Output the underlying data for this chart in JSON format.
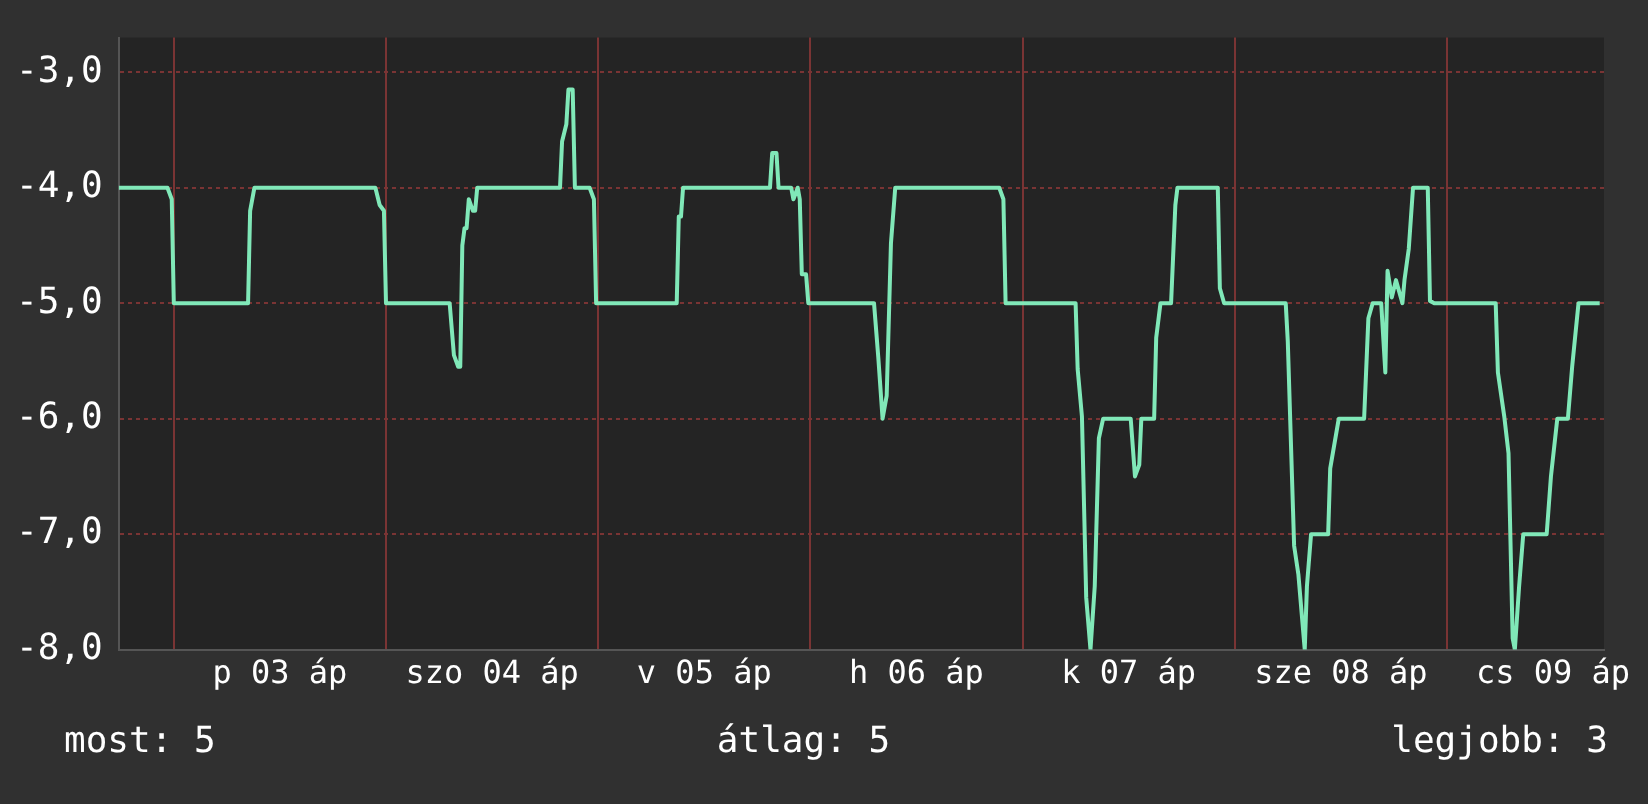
{
  "chart_data": {
    "type": "line",
    "xlim": [
      "--04-02T17:46",
      "--04-09T17:46"
    ],
    "ylim": [
      -8,
      -2.7
    ],
    "xticks": [
      {
        "value": "--04-03T00:00",
        "label": null
      },
      {
        "value": "--04-03T12:00",
        "label": "p 03 áp"
      },
      {
        "value": "--04-04T00:00",
        "label": null
      },
      {
        "value": "--04-04T12:00",
        "label": "szo 04 áp"
      },
      {
        "value": "--04-05T00:00",
        "label": null
      },
      {
        "value": "--04-05T12:00",
        "label": "v 05 áp"
      },
      {
        "value": "--04-06T00:00",
        "label": null
      },
      {
        "value": "--04-06T12:00",
        "label": "h 06 áp"
      },
      {
        "value": "--04-07T00:00",
        "label": null
      },
      {
        "value": "--04-07T12:00",
        "label": "k 07 áp"
      },
      {
        "value": "--04-08T00:00",
        "label": null
      },
      {
        "value": "--04-08T12:00",
        "label": "sze 08 áp"
      },
      {
        "value": "--04-09T00:00",
        "label": null
      },
      {
        "value": "--04-09T12:00",
        "label": "cs 09 áp"
      }
    ],
    "yticks": [
      {
        "value": -3,
        "label": "-3,0"
      },
      {
        "value": -4,
        "label": "-4,0"
      },
      {
        "value": -5,
        "label": "-5,0"
      },
      {
        "value": -6,
        "label": "-6,0"
      },
      {
        "value": -7,
        "label": "-7,0"
      },
      {
        "value": -8,
        "label": "-8,0"
      }
    ],
    "grid": true,
    "legend": false,
    "marker": "none",
    "line_style": "solid",
    "annotations": [
      "most: 5",
      "átlag: 5",
      "legjobb: 3"
    ],
    "series": [
      {
        "color": "#80e8b8",
        "x": [
          "--04-02T17:46",
          "--04-02T23:17",
          "--04-02T23:46",
          "--04-03T00:00",
          "--04-03T08:24",
          "--04-03T08:38",
          "--04-03T09:07",
          "--04-03T22:48",
          "--04-03T23:17",
          "--04-03T23:46",
          "--04-04T00:00",
          "--04-04T07:12",
          "--04-04T07:41",
          "--04-04T08:10",
          "--04-04T08:24",
          "--04-04T08:38",
          "--04-04T08:53",
          "--04-04T09:07",
          "--04-04T09:22",
          "--04-04T09:50",
          "--04-04T10:05",
          "--04-04T10:19",
          "--04-04T19:41",
          "--04-04T19:55",
          "--04-04T20:24",
          "--04-04T20:38",
          "--04-04T21:07",
          "--04-04T21:22",
          "--04-04T23:02",
          "--04-04T23:31",
          "--04-04T23:46",
          "--04-05T08:53",
          "--04-05T09:07",
          "--04-05T09:22",
          "--04-05T09:36",
          "--04-05T19:26",
          "--04-05T19:41",
          "--04-05T20:10",
          "--04-05T20:24",
          "--04-05T21:50",
          "--04-05T22:05",
          "--04-05T22:34",
          "--04-05T22:48",
          "--04-05T23:02",
          "--04-05T23:31",
          "--04-05T23:46",
          "--04-06T07:12",
          "--04-06T07:41",
          "--04-06T08:10",
          "--04-06T08:38",
          "--04-06T09:07",
          "--04-06T09:36",
          "--04-06T21:22",
          "--04-06T21:50",
          "--04-06T22:05",
          "--04-07T06:00",
          "--04-07T06:14",
          "--04-07T06:43",
          "--04-07T07:12",
          "--04-07T07:41",
          "--04-07T08:10",
          "--04-07T08:38",
          "--04-07T09:07",
          "--04-07T12:14",
          "--04-07T12:43",
          "--04-07T13:12",
          "--04-07T13:26",
          "--04-07T14:53",
          "--04-07T15:07",
          "--04-07T15:36",
          "--04-07T16:48",
          "--04-07T17:17",
          "--04-07T17:31",
          "--04-07T22:05",
          "--04-07T22:19",
          "--04-07T22:48",
          "--04-08T05:46",
          "--04-08T06:00",
          "--04-08T06:43",
          "--04-08T07:12",
          "--04-08T07:55",
          "--04-08T08:10",
          "--04-08T08:38",
          "--04-08T10:34",
          "--04-08T10:48",
          "--04-08T11:46",
          "--04-08T14:38",
          "--04-08T15:07",
          "--04-08T15:36",
          "--04-08T16:34",
          "--04-08T17:02",
          "--04-08T17:17",
          "--04-08T17:46",
          "--04-08T18:14",
          "--04-08T18:58",
          "--04-08T19:12",
          "--04-08T19:41",
          "--04-08T20:10",
          "--04-08T21:50",
          "--04-08T22:05",
          "--04-08T22:34",
          "--04-09T05:31",
          "--04-09T05:46",
          "--04-09T06:29",
          "--04-09T06:58",
          "--04-09T07:26",
          "--04-09T07:41",
          "--04-09T08:10",
          "--04-09T08:38",
          "--04-09T11:17",
          "--04-09T11:46",
          "--04-09T12:29",
          "--04-09T13:41",
          "--04-09T14:10",
          "--04-09T14:53",
          "--04-09T17:17"
        ],
        "values": [
          -4,
          -4,
          -4.1,
          -5,
          -5,
          -4.2,
          -4,
          -4,
          -4.15,
          -4.2,
          -5,
          -5,
          -5.45,
          -5.55,
          -5.55,
          -4.5,
          -4.35,
          -4.35,
          -4.1,
          -4.2,
          -4.2,
          -4,
          -4,
          -3.6,
          -3.45,
          -3.15,
          -3.15,
          -4,
          -4,
          -4.1,
          -5,
          -5,
          -4.25,
          -4.25,
          -4,
          -4,
          -3.7,
          -3.7,
          -4,
          -4,
          -4.1,
          -4,
          -4.1,
          -4.75,
          -4.75,
          -5,
          -5,
          -5.47,
          -6,
          -5.8,
          -4.48,
          -4,
          -4,
          -4.1,
          -5,
          -5,
          -5.57,
          -5.98,
          -7.55,
          -8,
          -7.45,
          -6.17,
          -6,
          -6,
          -6.5,
          -6.4,
          -6,
          -6,
          -5.3,
          -5,
          -5,
          -4.15,
          -4,
          -4,
          -4.87,
          -5,
          -5,
          -5.33,
          -7.1,
          -7.35,
          -8,
          -7.45,
          -7,
          -7,
          -6.43,
          -6,
          -6,
          -5.13,
          -5,
          -5,
          -5.6,
          -4.72,
          -4.95,
          -4.8,
          -5,
          -4.8,
          -4.53,
          -4,
          -4,
          -4.98,
          -5,
          -5,
          -5.6,
          -5.98,
          -6.3,
          -7.9,
          -8,
          -7.45,
          -7,
          -7,
          -6.5,
          -6,
          -6,
          -5.55,
          -5,
          -5
        ]
      }
    ]
  }
}
